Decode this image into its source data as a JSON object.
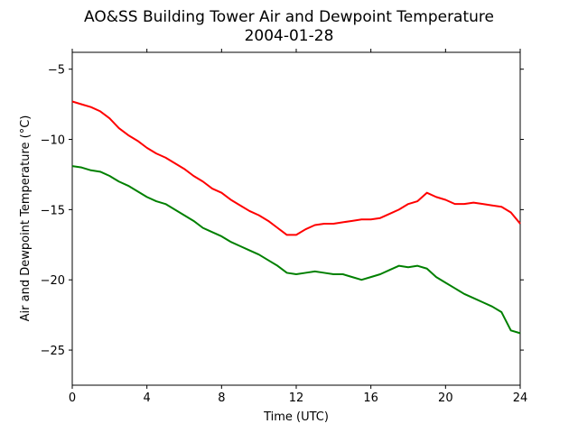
{
  "chart_data": {
    "type": "line",
    "title": "AO&SS Building Tower Air and Dewpoint Temperature",
    "subtitle": "2004-01-28",
    "xlabel": "Time (UTC)",
    "ylabel": "Air and Dewpoint Temperature (°C)",
    "xlim": [
      0,
      24
    ],
    "ylim": [
      -27.5,
      -3.8
    ],
    "xticks": [
      0,
      4,
      8,
      12,
      16,
      20,
      24
    ],
    "xtick_labels": [
      "0",
      "4",
      "8",
      "12",
      "16",
      "20",
      "24"
    ],
    "yticks": [
      -25,
      -20,
      -15,
      -10,
      -5
    ],
    "ytick_labels": [
      "−25",
      "−20",
      "−15",
      "−10",
      "−5"
    ],
    "grid": false,
    "series": [
      {
        "color": "#ff0000",
        "x": [
          0,
          0.5,
          1,
          1.5,
          2,
          2.5,
          3,
          3.5,
          4,
          4.5,
          5,
          5.5,
          6,
          6.5,
          7,
          7.5,
          8,
          8.5,
          9,
          9.5,
          10,
          10.5,
          11,
          11.5,
          12,
          12.5,
          13,
          13.5,
          14,
          14.5,
          15,
          15.5,
          16,
          16.5,
          17,
          17.5,
          18,
          18.5,
          19,
          19.5,
          20,
          20.5,
          21,
          21.5,
          22,
          22.5,
          23,
          23.5,
          24
        ],
        "values": [
          -7.3,
          -7.5,
          -7.7,
          -8.0,
          -8.5,
          -9.2,
          -9.7,
          -10.1,
          -10.6,
          -11.0,
          -11.3,
          -11.7,
          -12.1,
          -12.6,
          -13.0,
          -13.5,
          -13.8,
          -14.3,
          -14.7,
          -15.1,
          -15.4,
          -15.8,
          -16.3,
          -16.8,
          -16.8,
          -16.4,
          -16.1,
          -16.0,
          -16.0,
          -15.9,
          -15.8,
          -15.7,
          -15.7,
          -15.6,
          -15.3,
          -15.0,
          -14.6,
          -14.4,
          -13.8,
          -14.1,
          -14.3,
          -14.6,
          -14.6,
          -14.5,
          -14.6,
          -14.7,
          -14.8,
          -15.2,
          -16.0
        ]
      },
      {
        "color": "#008000",
        "x": [
          0,
          0.5,
          1,
          1.5,
          2,
          2.5,
          3,
          3.5,
          4,
          4.5,
          5,
          5.5,
          6,
          6.5,
          7,
          7.5,
          8,
          8.5,
          9,
          9.5,
          10,
          10.5,
          11,
          11.5,
          12,
          12.5,
          13,
          13.5,
          14,
          14.5,
          15,
          15.5,
          16,
          16.5,
          17,
          17.5,
          18,
          18.5,
          19,
          19.5,
          20,
          20.5,
          21,
          21.5,
          22,
          22.5,
          23,
          23.5,
          24
        ],
        "values": [
          -11.9,
          -12.0,
          -12.2,
          -12.3,
          -12.6,
          -13.0,
          -13.3,
          -13.7,
          -14.1,
          -14.4,
          -14.6,
          -15.0,
          -15.4,
          -15.8,
          -16.3,
          -16.6,
          -16.9,
          -17.3,
          -17.6,
          -17.9,
          -18.2,
          -18.6,
          -19.0,
          -19.5,
          -19.6,
          -19.5,
          -19.4,
          -19.5,
          -19.6,
          -19.6,
          -19.8,
          -20.0,
          -19.8,
          -19.6,
          -19.3,
          -19.0,
          -19.1,
          -19.0,
          -19.2,
          -19.8,
          -20.2,
          -20.6,
          -21.0,
          -21.3,
          -21.6,
          -21.9,
          -22.3,
          -23.6,
          -23.8
        ]
      }
    ]
  }
}
